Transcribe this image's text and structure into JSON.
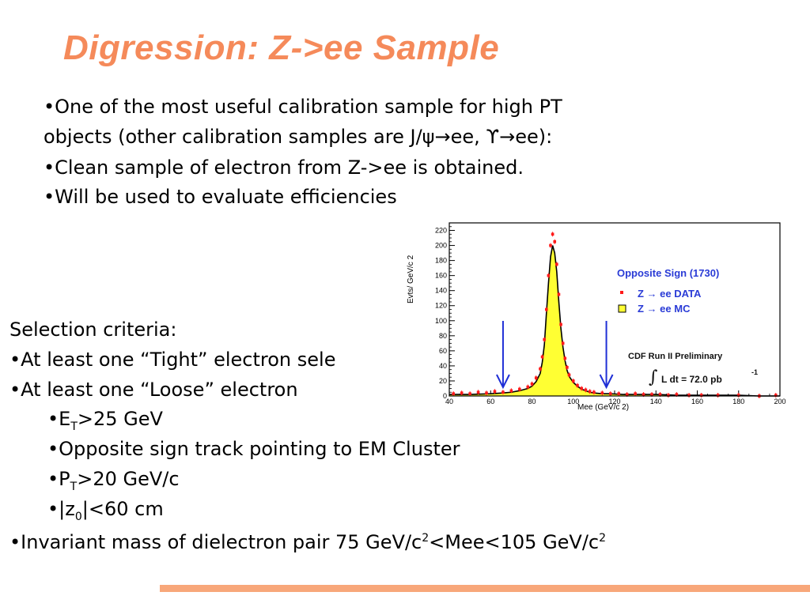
{
  "slide": {
    "title": "Digression: Z->ee Sample",
    "bullets": [
      "•One of the most useful calibration sample for high PT",
      "objects (other calibration samples are J/ψ→ee, ϒ→ee):",
      "•Clean sample of electron from Z->ee is obtained.",
      "•Will be used to evaluate efficiencies"
    ],
    "selection": {
      "heading": "Selection criteria:",
      "tight": "•At least one “Tight” electron sele",
      "loose": "•At least one “Loose” electron",
      "et_prefix": "•E",
      "et_sub": "T",
      "et_rest": ">25 GeV",
      "opposite": "•Opposite sign track pointing to EM Cluster",
      "pt_prefix": "•P",
      "pt_sub": "T",
      "pt_rest": ">20 GeV/c",
      "z0_prefix": "•|z",
      "z0_sub": "0",
      "z0_rest": "|<60 cm",
      "mass_a": "•Invariant mass of dielectron pair 75 GeV/c",
      "mass_sup1": "2",
      "mass_b": "<Mee<105 GeV/c",
      "mass_sup2": "2"
    }
  },
  "chart_data": {
    "type": "histogram",
    "ylabel": "Evts/ GeV/c 2",
    "xlabel": "Mee (GeV/c 2)",
    "xlim": [
      40,
      200
    ],
    "ylim": [
      0,
      230
    ],
    "xticks": [
      40,
      60,
      80,
      100,
      120,
      140,
      160,
      180,
      200
    ],
    "yticks": [
      0,
      20,
      40,
      60,
      80,
      100,
      120,
      140,
      160,
      180,
      200,
      220
    ],
    "legend": {
      "header": "Opposite Sign (1730)",
      "data_label": "Z → ee DATA",
      "mc_label": "Z → ee  MC"
    },
    "annotations": {
      "preliminary": "CDF Run II Preliminary",
      "luminosity": "L dt = 72.0 pb",
      "lumi_exp": "-1"
    },
    "cut_arrows_x": [
      66,
      116
    ],
    "series": [
      {
        "name": "Z → ee DATA",
        "x": [
          42,
          46,
          50,
          54,
          58,
          62,
          66,
          70,
          74,
          78,
          80,
          82,
          84,
          85,
          86,
          87,
          88,
          89,
          90,
          91,
          92,
          93,
          94,
          95,
          96,
          97,
          98,
          100,
          102,
          104,
          106,
          108,
          110,
          114,
          118,
          122,
          126,
          130,
          134,
          138,
          142,
          146,
          150,
          156,
          162,
          170,
          180,
          190,
          198
        ],
        "values": [
          3,
          4,
          3,
          5,
          4,
          6,
          5,
          7,
          9,
          12,
          16,
          24,
          36,
          52,
          75,
          115,
          160,
          200,
          215,
          205,
          175,
          135,
          95,
          70,
          50,
          38,
          28,
          20,
          14,
          10,
          8,
          6,
          5,
          4,
          3,
          3,
          2,
          3,
          2,
          2,
          2,
          1,
          2,
          1,
          1,
          1,
          1,
          0,
          1
        ]
      },
      {
        "name": "Z → ee  MC",
        "x": [
          40,
          50,
          60,
          66,
          70,
          74,
          78,
          80,
          82,
          84,
          85,
          86,
          87,
          88,
          89,
          90,
          91,
          92,
          93,
          94,
          95,
          96,
          97,
          98,
          100,
          102,
          104,
          106,
          108,
          110,
          114,
          118,
          124,
          130,
          140,
          150,
          160,
          170,
          180,
          190,
          200
        ],
        "values": [
          2,
          2,
          3,
          4,
          5,
          7,
          10,
          13,
          19,
          30,
          45,
          68,
          110,
          150,
          185,
          200,
          190,
          165,
          125,
          90,
          65,
          47,
          34,
          26,
          18,
          13,
          9,
          7,
          5,
          4,
          3,
          3,
          2,
          2,
          2,
          1,
          1,
          1,
          1,
          0,
          0
        ]
      }
    ]
  }
}
